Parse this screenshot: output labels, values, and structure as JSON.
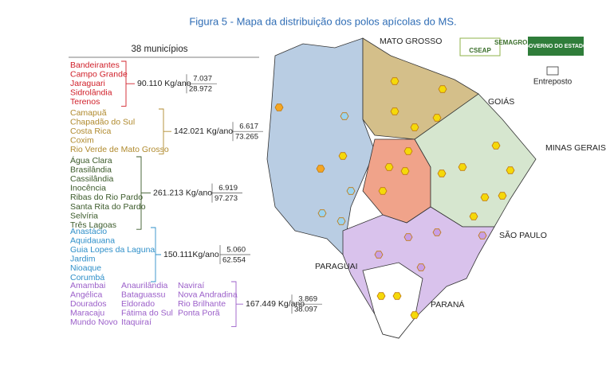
{
  "title": "Figura 5 - Mapa da distribuição dos polos apícolas do MS.",
  "header": "38 municípios",
  "groups": [
    {
      "color": "#d0202a",
      "municipalities": [
        "Bandeirantes",
        "Campo Grande",
        "Jaraguari",
        "Sidrolândia",
        "Terenos"
      ],
      "production": "90.110 Kg/ano",
      "ratio_top": "7.037",
      "ratio_bottom": "28.972"
    },
    {
      "color": "#b08a2e",
      "municipalities": [
        "Camapuã",
        "Chapadão do Sul",
        "Costa Rica",
        "Coxim",
        "Rio Verde de Mato Grosso"
      ],
      "production": "142.021 Kg/ano",
      "ratio_top": "6.617",
      "ratio_bottom": "73.265"
    },
    {
      "color": "#3b5a2a",
      "municipalities": [
        "Água Clara",
        "Brasilândia",
        "Cassilândia",
        "Inocência",
        "Ribas do Rio Pardo",
        "Santa Rita do Pardo",
        "Selvíria",
        "Três Lagoas"
      ],
      "production": "261.213 Kg/ano",
      "ratio_top": "6.919",
      "ratio_bottom": "97.273"
    },
    {
      "color": "#2e8fc9",
      "municipalities": [
        "Anastácio",
        "Aquidauana",
        "Guia Lopes da Laguna",
        "Jardim",
        "Nioaque",
        "Corumbá"
      ],
      "production": "150.111Kg/ano",
      "ratio_top": "5.060",
      "ratio_bottom": "62.554"
    },
    {
      "color": "#9b5fc9",
      "municipalities": [
        "Amambai",
        "Angélica",
        "Dourados",
        "Maracaju",
        "Mundo Novo",
        "Anaurilândia",
        "Bataguassu",
        "Eldorado",
        "Fátima do Sul",
        "Itaquiraí",
        "Naviraí",
        "Nova Andradina",
        "Rio Brilhante",
        "Ponta Porã"
      ],
      "production": "167.449 Kg/ano",
      "ratio_top": "3.869",
      "ratio_bottom": "38.097"
    }
  ],
  "map_labels": [
    "MATO GROSSO",
    "GOIÁS",
    "MINAS GERAIS",
    "SÃO PAULO",
    "PARANÁ",
    "PARAGUAI"
  ],
  "legend": "Entreposto",
  "logos": [
    "CSEAP",
    "SEMAGRO",
    "GOVERNO DO ESTADO"
  ]
}
